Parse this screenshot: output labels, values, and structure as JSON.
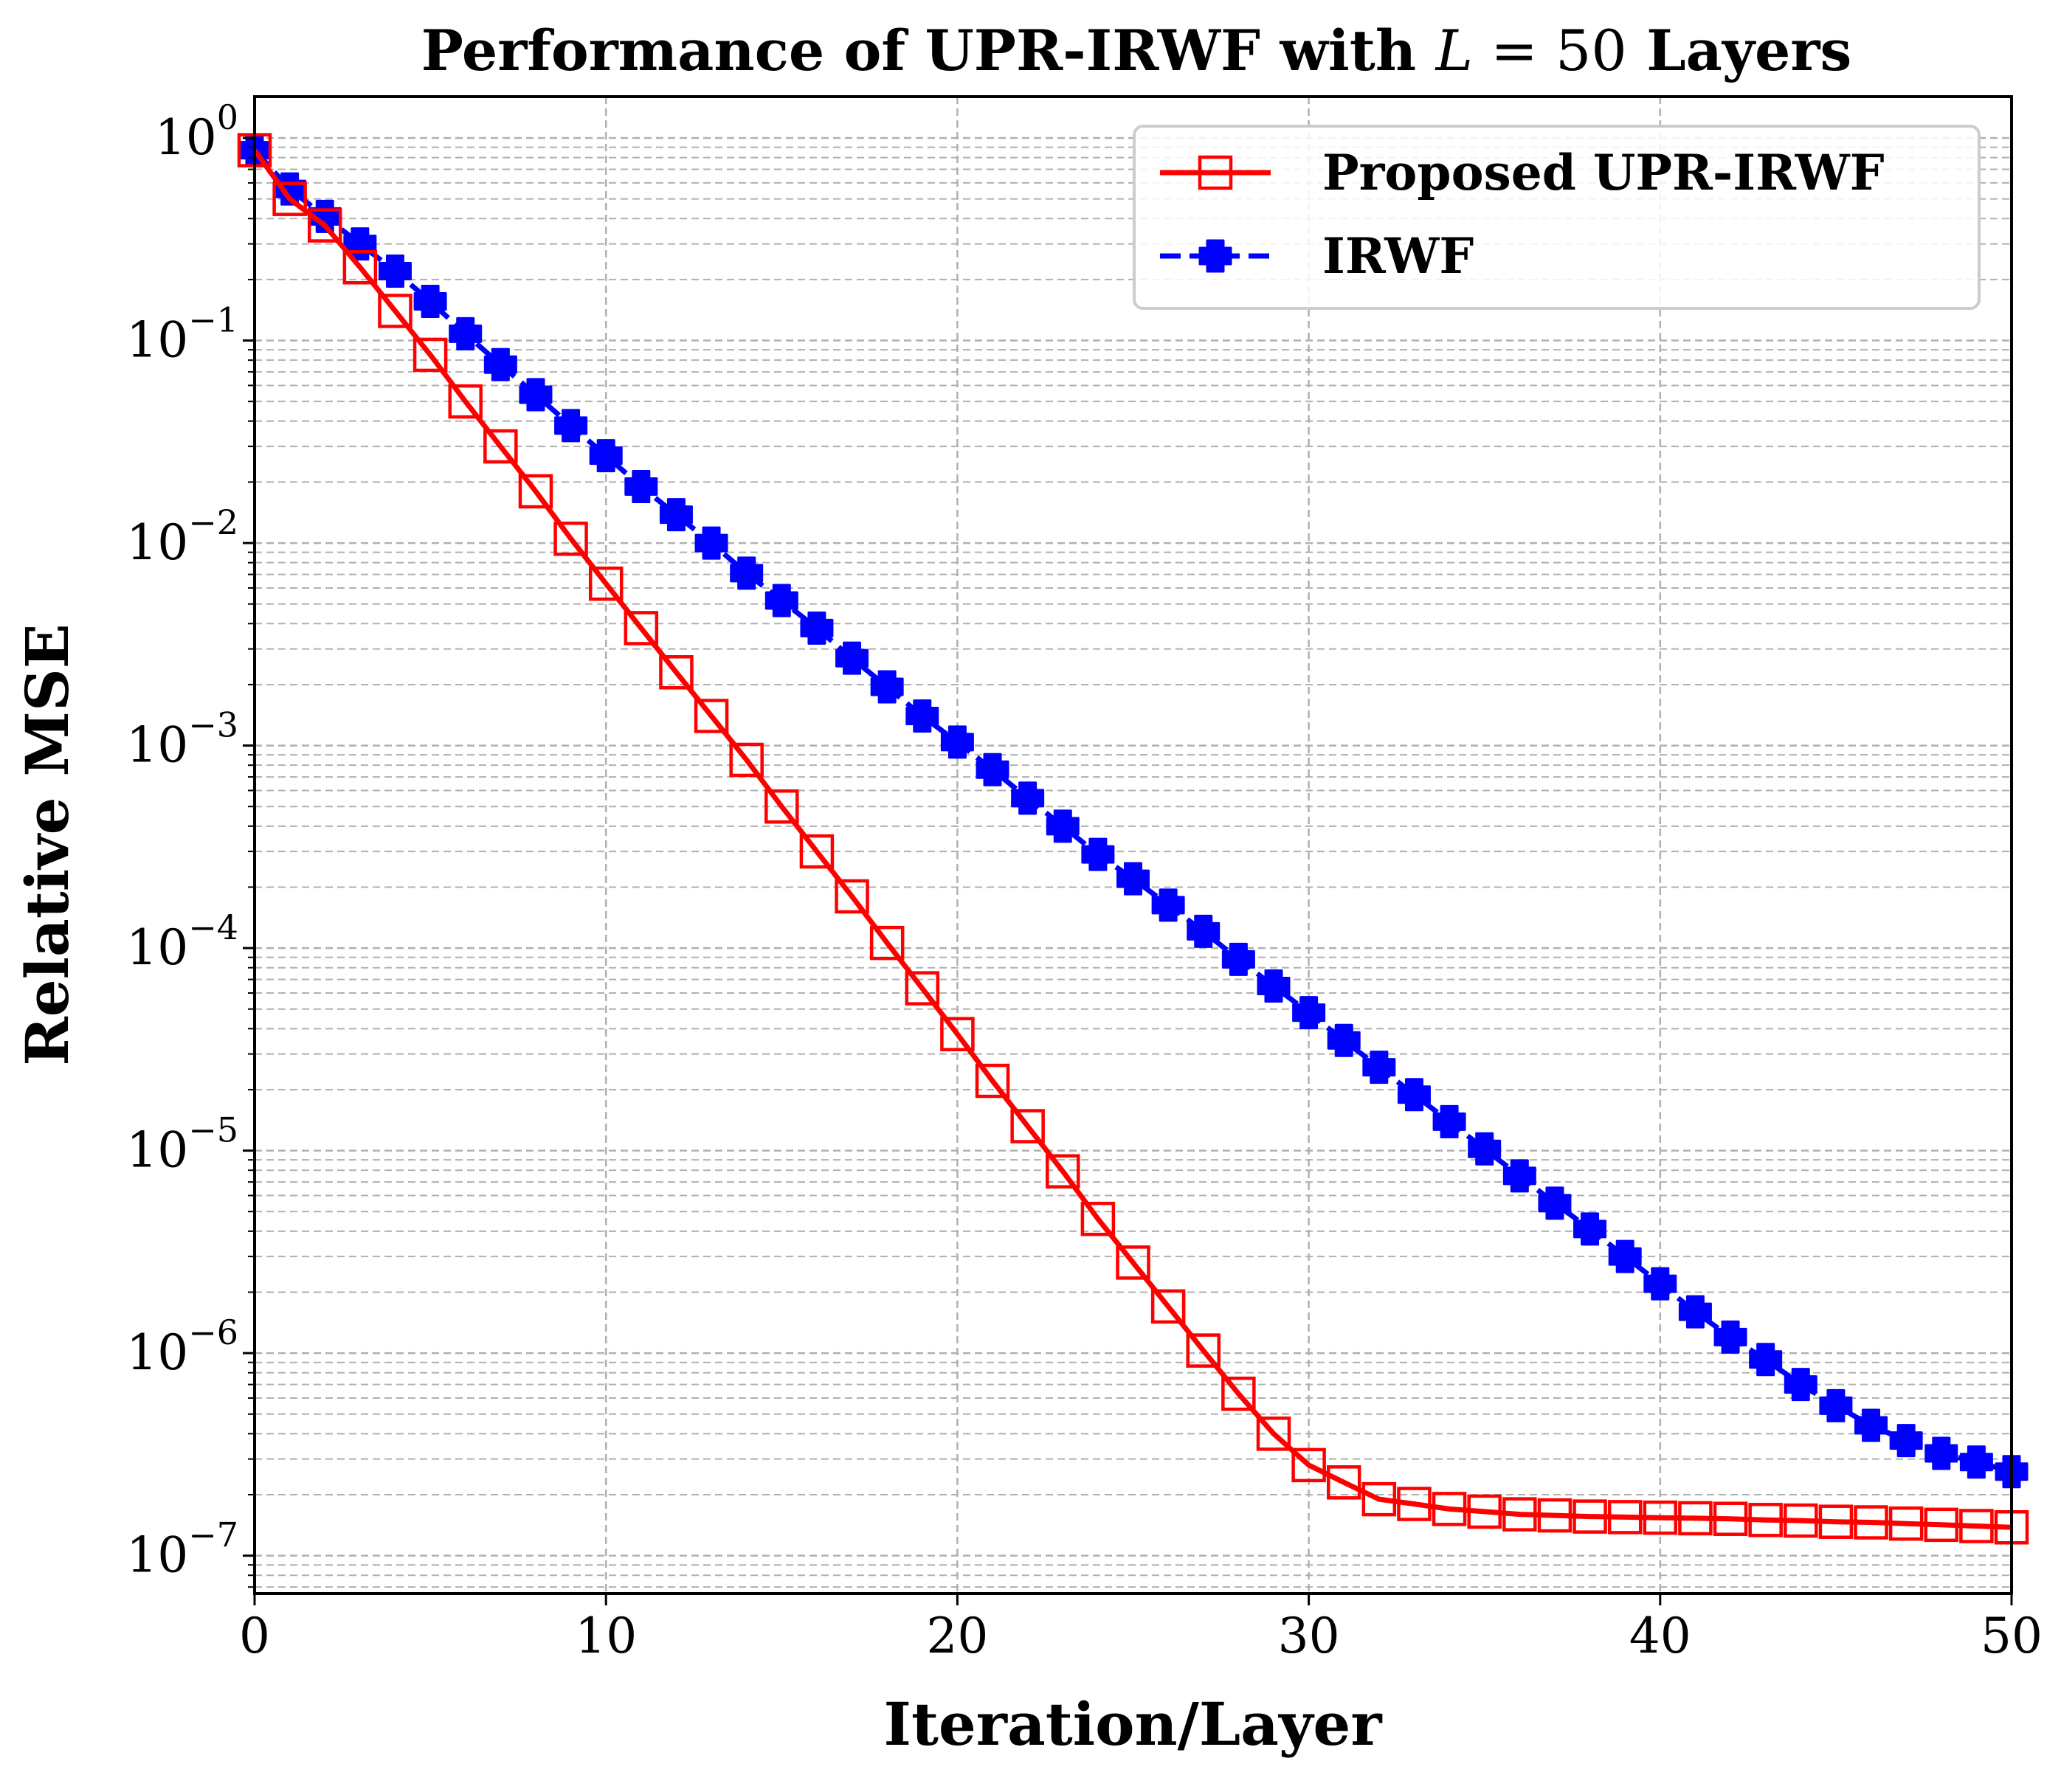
{
  "chart_data": {
    "type": "line",
    "title": "Performance of UPR-IRWF with L = 50 Layers",
    "title_parts": {
      "prefix": "Performance of UPR-IRWF with ",
      "var": "L",
      "eq": " = 50",
      "suffix": " Layers"
    },
    "xlabel": "Iteration/Layer",
    "ylabel": "Relative MSE",
    "xlim": [
      0,
      50
    ],
    "ylim": [
      6.5e-08,
      1.6
    ],
    "yscale": "log",
    "grid": true,
    "legend_position": "top-right",
    "x_ticks": [
      0,
      10,
      20,
      30,
      40,
      50
    ],
    "x_tick_labels": [
      "0",
      "10",
      "20",
      "30",
      "40",
      "50"
    ],
    "y_ticks": [
      1,
      0.1,
      0.01,
      0.001,
      0.0001,
      1e-05,
      1e-06,
      1e-07
    ],
    "y_tick_base": "10",
    "y_tick_exponents": [
      "0",
      "−1",
      "−2",
      "−3",
      "−4",
      "−5",
      "−6",
      "−7"
    ],
    "x": [
      0,
      1,
      2,
      3,
      4,
      5,
      6,
      7,
      8,
      9,
      10,
      11,
      12,
      13,
      14,
      15,
      16,
      17,
      18,
      19,
      20,
      21,
      22,
      23,
      24,
      25,
      26,
      27,
      28,
      29,
      30,
      31,
      32,
      33,
      34,
      35,
      36,
      37,
      38,
      39,
      40,
      41,
      42,
      43,
      44,
      45,
      46,
      47,
      48,
      49,
      50
    ],
    "series": [
      {
        "name": "Proposed UPR-IRWF",
        "color": "#ff0000",
        "line_style": "solid",
        "marker": "square-open",
        "values": [
          0.87,
          0.5,
          0.37,
          0.23,
          0.14,
          0.085,
          0.05,
          0.03,
          0.018,
          0.0105,
          0.0063,
          0.0038,
          0.0023,
          0.0014,
          0.00085,
          0.0005,
          0.0003,
          0.00018,
          0.000106,
          6.33e-05,
          3.76e-05,
          2.21e-05,
          1.32e-05,
          7.9e-06,
          4.6e-06,
          2.8e-06,
          1.7e-06,
          1.03e-06,
          6.3e-07,
          4e-07,
          2.8e-07,
          2.3e-07,
          1.9e-07,
          1.8e-07,
          1.7e-07,
          1.65e-07,
          1.6e-07,
          1.58e-07,
          1.56e-07,
          1.55e-07,
          1.54e-07,
          1.53e-07,
          1.52e-07,
          1.5e-07,
          1.49e-07,
          1.47e-07,
          1.46e-07,
          1.44e-07,
          1.42e-07,
          1.4e-07,
          1.38e-07
        ]
      },
      {
        "name": "IRWF",
        "color": "#0000ff",
        "line_style": "dashed",
        "marker": "plus-filled",
        "values": [
          0.87,
          0.56,
          0.41,
          0.3,
          0.22,
          0.156,
          0.108,
          0.076,
          0.054,
          0.038,
          0.027,
          0.019,
          0.0138,
          0.01,
          0.0071,
          0.0052,
          0.0038,
          0.0027,
          0.00195,
          0.0014,
          0.00104,
          0.00076,
          0.00055,
          0.0004,
          0.00029,
          0.00022,
          0.000163,
          0.000121,
          8.8e-05,
          6.5e-05,
          4.8e-05,
          3.5e-05,
          2.58e-05,
          1.89e-05,
          1.39e-05,
          1.02e-05,
          7.5e-06,
          5.5e-06,
          4.1e-06,
          3e-06,
          2.2e-06,
          1.6e-06,
          1.2e-06,
          9.3e-07,
          7e-07,
          5.5e-07,
          4.4e-07,
          3.7e-07,
          3.2e-07,
          2.9e-07,
          2.6e-07
        ]
      }
    ]
  }
}
